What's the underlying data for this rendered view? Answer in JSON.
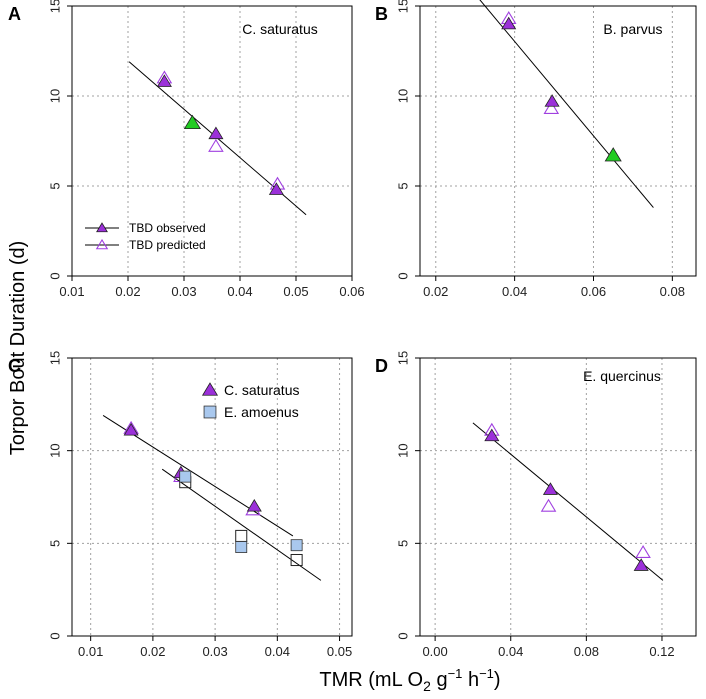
{
  "figure": {
    "ylabel": "Torpor Bout Duration (d)",
    "xlabel": {
      "prefix": "TMR (mL O",
      "sub": "2",
      "mid1": " g",
      "sup1": "−1",
      "mid2": " h",
      "sup2": "−1",
      "suffix": ")"
    }
  },
  "colors": {
    "observed_fill": "#9b30d9",
    "predicted_stroke": "#a040e0",
    "highlight_fill": "#22cc22",
    "amoenus_fill": "#a9c8ee",
    "grid": "#a0a0a0",
    "line": "#000000"
  },
  "chart_data": [
    {
      "letter": "A",
      "type": "scatter",
      "title": "C. saturatus",
      "xlim": [
        0.01,
        0.06
      ],
      "ylim": [
        0,
        15
      ],
      "xticks": [
        0.01,
        0.02,
        0.03,
        0.04,
        0.05,
        0.06
      ],
      "xtick_labels": [
        "0.01",
        "0.02",
        "0.03",
        "0.04",
        "0.05",
        "0.06"
      ],
      "yticks": [
        0,
        5,
        10,
        15
      ],
      "ytick_labels": [
        "0",
        "5",
        "10",
        "15"
      ],
      "series": [
        {
          "name": "TBD observed",
          "marker": "triangle-filled",
          "points": [
            [
              0.0265,
              10.8
            ],
            [
              0.0315,
              8.5
            ],
            [
              0.0357,
              7.9
            ],
            [
              0.0465,
              4.8
            ]
          ],
          "highlight": [
            1
          ]
        },
        {
          "name": "TBD predicted",
          "marker": "triangle-open",
          "points": [
            [
              0.0265,
              11.0
            ],
            [
              0.0357,
              7.2
            ],
            [
              0.0467,
              5.1
            ]
          ]
        }
      ],
      "lines": [
        {
          "x": [
            0.0202,
            0.0518
          ],
          "y": [
            11.9,
            3.4
          ]
        }
      ],
      "legend": [
        {
          "label": "TBD observed",
          "marker": "triangle-filled"
        },
        {
          "label": "TBD predicted",
          "marker": "triangle-open"
        }
      ]
    },
    {
      "letter": "B",
      "type": "scatter",
      "title": "B. parvus",
      "xlim": [
        0.016,
        0.086
      ],
      "ylim": [
        0,
        15
      ],
      "xticks": [
        0.02,
        0.04,
        0.06,
        0.08
      ],
      "xtick_labels": [
        "0.02",
        "0.04",
        "0.06",
        "0.08"
      ],
      "yticks": [
        0,
        5,
        10,
        15
      ],
      "ytick_labels": [
        "0",
        "5",
        "10",
        "15"
      ],
      "series": [
        {
          "name": "TBD observed",
          "marker": "triangle-filled",
          "points": [
            [
              0.0385,
              14.0
            ],
            [
              0.0495,
              9.7
            ],
            [
              0.065,
              6.7
            ]
          ],
          "highlight": [
            2
          ]
        },
        {
          "name": "TBD predicted",
          "marker": "triangle-open",
          "points": [
            [
              0.0385,
              14.3
            ],
            [
              0.0493,
              9.3
            ]
          ]
        }
      ],
      "lines": [
        {
          "x": [
            0.0302,
            0.0752
          ],
          "y": [
            15.6,
            3.8
          ]
        }
      ]
    },
    {
      "letter": "C",
      "type": "scatter",
      "title": "",
      "xlim": [
        0.007,
        0.052
      ],
      "ylim": [
        0,
        15
      ],
      "xticks": [
        0.01,
        0.02,
        0.03,
        0.04,
        0.05
      ],
      "xtick_labels": [
        "0.01",
        "0.02",
        "0.03",
        "0.04",
        "0.05"
      ],
      "yticks": [
        0,
        5,
        10,
        15
      ],
      "ytick_labels": [
        "0",
        "5",
        "10",
        "15"
      ],
      "series": [
        {
          "name": "C. saturatus observed",
          "marker": "triangle-filled",
          "points": [
            [
              0.0165,
              11.1
            ],
            [
              0.0245,
              8.8
            ],
            [
              0.0363,
              7.0
            ]
          ]
        },
        {
          "name": "C. saturatus predicted",
          "marker": "triangle-open",
          "points": [
            [
              0.0165,
              11.2
            ],
            [
              0.0245,
              8.6
            ],
            [
              0.0361,
              6.8
            ]
          ]
        },
        {
          "name": "E. amoenus observed",
          "marker": "square-filled",
          "points": [
            [
              0.0252,
              8.6
            ],
            [
              0.0342,
              4.8
            ],
            [
              0.0431,
              4.9
            ]
          ]
        },
        {
          "name": "E. amoenus predicted",
          "marker": "square-open",
          "points": [
            [
              0.0252,
              8.3
            ],
            [
              0.0342,
              5.4
            ],
            [
              0.0431,
              4.1
            ]
          ]
        }
      ],
      "lines": [
        {
          "x": [
            0.012,
            0.0425
          ],
          "y": [
            11.9,
            5.4
          ]
        },
        {
          "x": [
            0.0215,
            0.047
          ],
          "y": [
            9.0,
            3.0
          ]
        }
      ],
      "legend": [
        {
          "label": "C. saturatus",
          "marker": "triangle-filled"
        },
        {
          "label": "E. amoenus",
          "marker": "square-filled"
        }
      ]
    },
    {
      "letter": "D",
      "type": "scatter",
      "title": "E. quercinus",
      "xlim": [
        -0.008,
        0.138
      ],
      "ylim": [
        0,
        15
      ],
      "xticks": [
        0.0,
        0.04,
        0.08,
        0.12
      ],
      "xtick_labels": [
        "0.00",
        "0.04",
        "0.08",
        "0.12"
      ],
      "yticks": [
        0,
        5,
        10,
        15
      ],
      "ytick_labels": [
        "0",
        "5",
        "10",
        "15"
      ],
      "series": [
        {
          "name": "TBD observed",
          "marker": "triangle-filled",
          "points": [
            [
              0.03,
              10.8
            ],
            [
              0.061,
              7.9
            ],
            [
              0.109,
              3.8
            ]
          ]
        },
        {
          "name": "TBD predicted",
          "marker": "triangle-open",
          "points": [
            [
              0.03,
              11.1
            ],
            [
              0.06,
              7.0
            ],
            [
              0.11,
              4.5
            ]
          ]
        }
      ],
      "lines": [
        {
          "x": [
            0.02,
            0.1205
          ],
          "y": [
            11.5,
            3.0
          ]
        }
      ]
    }
  ]
}
